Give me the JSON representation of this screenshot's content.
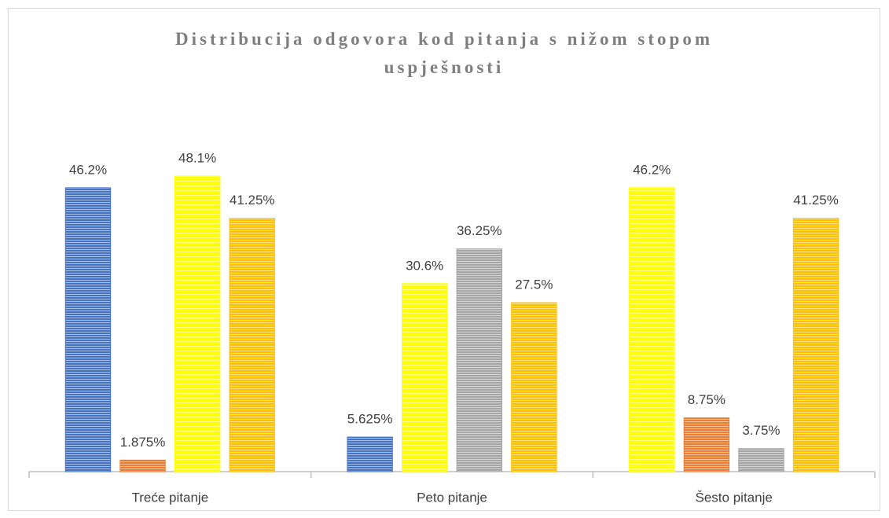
{
  "chart_data": {
    "type": "bar",
    "title": "Distribucija odgovora kod pitanja s nižom stopom uspješnosti",
    "categories": [
      "Treće pitanje",
      "Peto pitanje",
      "Šesto pitanje"
    ],
    "series": [
      {
        "values": [
          46.2,
          5.625,
          46.2
        ],
        "value_labels": [
          "46.2%",
          "5.625%",
          "46.2%"
        ],
        "colors": [
          "#4472c4",
          "#4472c4",
          "#ffff00"
        ]
      },
      {
        "values": [
          1.875,
          30.6,
          8.75
        ],
        "value_labels": [
          "1.875%",
          "30.6%",
          "8.75%"
        ],
        "colors": [
          "#ed7d31",
          "#ffff00",
          "#ed7d31"
        ]
      },
      {
        "values": [
          48.1,
          36.25,
          3.75
        ],
        "value_labels": [
          "48.1%",
          "36.25%",
          "3.75%"
        ],
        "colors": [
          "#ffff00",
          "#a5a5a5",
          "#a5a5a5"
        ]
      },
      {
        "values": [
          41.25,
          27.5,
          41.25
        ],
        "value_labels": [
          "41.25%",
          "27.5%",
          "41.25%"
        ],
        "colors": [
          "#ffc000",
          "#ffc000",
          "#ffc000"
        ]
      }
    ],
    "ylim": [
      0,
      60
    ]
  }
}
